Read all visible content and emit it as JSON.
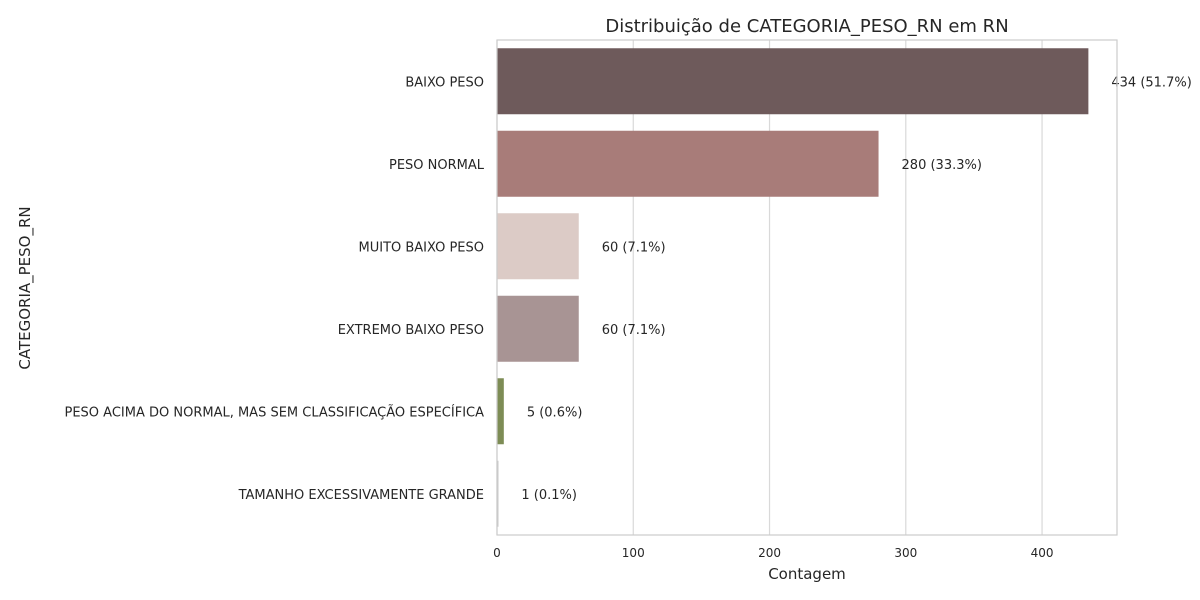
{
  "chart_data": {
    "type": "bar",
    "orientation": "horizontal",
    "title": "Distribuição de CATEGORIA_PESO_RN em RN",
    "xlabel": "Contagem",
    "ylabel": "CATEGORIA_PESO_RN",
    "categories": [
      "BAIXO PESO",
      "PESO NORMAL",
      "MUITO BAIXO PESO",
      "EXTREMO BAIXO PESO",
      "PESO ACIMA DO NORMAL, MAS SEM CLASSIFICAÇÃO ESPECÍFICA",
      "TAMANHO EXCESSIVAMENTE GRANDE"
    ],
    "values": [
      434,
      280,
      60,
      60,
      5,
      1
    ],
    "data_labels": [
      "434 (51.7%)",
      "280 (33.3%)",
      "60 (7.1%)",
      "60 (7.1%)",
      "5 (0.6%)",
      "1 (0.1%)"
    ],
    "colors": [
      "#6e5a5b",
      "#a87c79",
      "#dccbc6",
      "#a89494",
      "#7d8c55",
      "#c9c9c9"
    ],
    "xlim": [
      0,
      455
    ],
    "xticks": [
      0,
      100,
      200,
      300,
      400
    ],
    "xtick_labels": [
      "0",
      "100",
      "200",
      "300",
      "400"
    ],
    "grid": "vertical"
  }
}
